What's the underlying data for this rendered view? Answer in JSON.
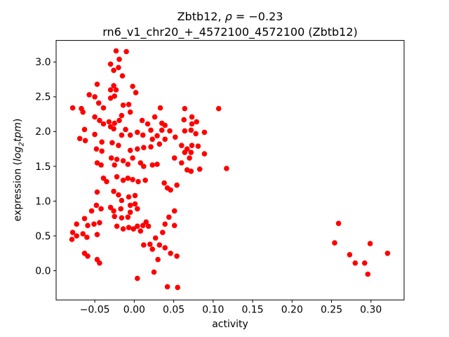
{
  "header": {
    "title_gene": "Zbtb12, ",
    "title_rho_symbol": "ρ",
    "title_rho_value": " = −0.23",
    "subtitle": "rn6_v1_chr20_+_4572100_4572100 (Zbtb12)"
  },
  "axes": {
    "xlabel": "activity",
    "ylabel_prefix": "expression (",
    "ylabel_log": "log",
    "ylabel_sub": "2",
    "ylabel_tpm": "tpm",
    "ylabel_suffix": ")"
  },
  "chart_data": {
    "type": "scatter",
    "title": "Zbtb12, ρ = −0.23",
    "subtitle": "rn6_v1_chr20_+_4572100_4572100 (Zbtb12)",
    "gene": "Zbtb12",
    "rho": -0.23,
    "xlabel": "activity",
    "ylabel": "expression (log2tpm)",
    "marker_color": "#ff0000",
    "background": "#ffffff",
    "grid": false,
    "legend": false,
    "xlim": [
      -0.099,
      0.342
    ],
    "ylim": [
      -0.42,
      3.31
    ],
    "xticks": [
      {
        "v": -0.05,
        "label": "−0.05"
      },
      {
        "v": 0.0,
        "label": "0.00"
      },
      {
        "v": 0.05,
        "label": "0.05"
      },
      {
        "v": 0.1,
        "label": "0.10"
      },
      {
        "v": 0.15,
        "label": "0.15"
      },
      {
        "v": 0.2,
        "label": "0.20"
      },
      {
        "v": 0.25,
        "label": "0.25"
      },
      {
        "v": 0.3,
        "label": "0.30"
      }
    ],
    "yticks": [
      {
        "v": 0.0,
        "label": "0.0"
      },
      {
        "v": 0.5,
        "label": "0.5"
      },
      {
        "v": 1.0,
        "label": "1.0"
      },
      {
        "v": 1.5,
        "label": "1.5"
      },
      {
        "v": 2.0,
        "label": "2.0"
      },
      {
        "v": 2.5,
        "label": "2.5"
      },
      {
        "v": 3.0,
        "label": "3.0"
      }
    ],
    "points": [
      [
        -0.023,
        3.16
      ],
      [
        -0.01,
        3.15
      ],
      [
        -0.019,
        3.04
      ],
      [
        -0.03,
        2.97
      ],
      [
        -0.02,
        2.92
      ],
      [
        -0.026,
        2.88
      ],
      [
        -0.015,
        2.8
      ],
      [
        -0.047,
        2.68
      ],
      [
        -0.026,
        2.66
      ],
      [
        -0.03,
        2.6
      ],
      [
        -0.023,
        2.6
      ],
      [
        -0.002,
        2.65
      ],
      [
        0.002,
        2.56
      ],
      [
        -0.057,
        2.53
      ],
      [
        -0.05,
        2.5
      ],
      [
        -0.025,
        2.51
      ],
      [
        -0.03,
        2.48
      ],
      [
        -0.045,
        2.41
      ],
      [
        -0.078,
        2.34
      ],
      [
        -0.067,
        2.33
      ],
      [
        -0.065,
        2.28
      ],
      [
        -0.039,
        2.34
      ],
      [
        -0.014,
        2.38
      ],
      [
        -0.007,
        2.39
      ],
      [
        -0.005,
        2.28
      ],
      [
        -0.016,
        2.23
      ],
      [
        -0.05,
        2.21
      ],
      [
        -0.044,
        2.16
      ],
      [
        -0.039,
        2.11
      ],
      [
        -0.032,
        2.14
      ],
      [
        -0.025,
        2.12
      ],
      [
        -0.019,
        2.16
      ],
      [
        0.01,
        2.16
      ],
      [
        0.017,
        2.11
      ],
      [
        -0.03,
        2.07
      ],
      [
        0.033,
        2.34
      ],
      [
        0.026,
        2.21
      ],
      [
        0.035,
        2.12
      ],
      [
        0.039,
        2.09
      ],
      [
        0.064,
        2.33
      ],
      [
        0.063,
        2.17
      ],
      [
        0.073,
        2.21
      ],
      [
        0.079,
        2.14
      ],
      [
        0.073,
        2.11
      ],
      [
        0.107,
        2.33
      ],
      [
        -0.063,
        2.03
      ],
      [
        -0.05,
        1.96
      ],
      [
        -0.069,
        1.9
      ],
      [
        -0.062,
        1.87
      ],
      [
        -0.026,
        2.04
      ],
      [
        -0.011,
        2.03
      ],
      [
        -0.016,
        1.95
      ],
      [
        -0.005,
        1.95
      ],
      [
        0.004,
        1.99
      ],
      [
        0.011,
        1.95
      ],
      [
        0.021,
        2.02
      ],
      [
        0.023,
        1.89
      ],
      [
        -0.041,
        1.85
      ],
      [
        -0.028,
        1.84
      ],
      [
        -0.02,
        1.8
      ],
      [
        -0.048,
        1.75
      ],
      [
        -0.041,
        1.72
      ],
      [
        -0.005,
        1.73
      ],
      [
        0.004,
        1.75
      ],
      [
        0.012,
        1.77
      ],
      [
        0.021,
        1.78
      ],
      [
        -0.047,
        1.55
      ],
      [
        -0.042,
        1.52
      ],
      [
        -0.029,
        1.62
      ],
      [
        -0.022,
        1.6
      ],
      [
        -0.025,
        1.52
      ],
      [
        -0.014,
        1.58
      ],
      [
        -0.008,
        1.53
      ],
      [
        -0.002,
        1.62
      ],
      [
        0.008,
        1.55
      ],
      [
        0.012,
        1.5
      ],
      [
        0.023,
        1.52
      ],
      [
        -0.039,
        1.33
      ],
      [
        -0.035,
        1.28
      ],
      [
        -0.022,
        1.35
      ],
      [
        -0.014,
        1.3
      ],
      [
        -0.008,
        1.33
      ],
      [
        -0.002,
        1.31
      ],
      [
        0.005,
        1.28
      ],
      [
        0.014,
        1.3
      ],
      [
        -0.047,
        1.13
      ],
      [
        -0.026,
        1.14
      ],
      [
        -0.02,
        1.09
      ],
      [
        -0.007,
        1.06
      ],
      [
        0.001,
        1.08
      ],
      [
        -0.016,
        1.01
      ],
      [
        -0.005,
        0.94
      ],
      [
        0.001,
        0.96
      ],
      [
        -0.048,
        0.94
      ],
      [
        -0.042,
        0.89
      ],
      [
        -0.054,
        0.86
      ],
      [
        -0.03,
        0.91
      ],
      [
        -0.026,
        0.86
      ],
      [
        -0.017,
        0.89
      ],
      [
        -0.005,
        0.84
      ],
      [
        0.004,
        0.89
      ],
      [
        0.035,
        2.02
      ],
      [
        0.045,
        2.01
      ],
      [
        0.029,
        1.94
      ],
      [
        0.039,
        1.89
      ],
      [
        0.052,
        1.92
      ],
      [
        0.032,
        1.82
      ],
      [
        0.064,
        2.01
      ],
      [
        0.072,
        2.02
      ],
      [
        0.078,
        1.97
      ],
      [
        0.089,
        1.99
      ],
      [
        0.06,
        1.8
      ],
      [
        0.067,
        1.75
      ],
      [
        0.073,
        1.8
      ],
      [
        0.081,
        1.79
      ],
      [
        0.072,
        1.7
      ],
      [
        0.064,
        1.7
      ],
      [
        0.089,
        1.68
      ],
      [
        0.051,
        1.62
      ],
      [
        0.06,
        1.55
      ],
      [
        0.07,
        1.62
      ],
      [
        0.029,
        1.53
      ],
      [
        0.067,
        1.45
      ],
      [
        0.072,
        1.43
      ],
      [
        0.083,
        1.46
      ],
      [
        0.117,
        1.47
      ],
      [
        0.038,
        1.26
      ],
      [
        0.042,
        1.19
      ],
      [
        0.046,
        1.16
      ],
      [
        0.054,
        1.23
      ],
      [
        0.051,
        0.86
      ],
      [
        -0.063,
        0.75
      ],
      [
        -0.073,
        0.67
      ],
      [
        -0.059,
        0.65
      ],
      [
        -0.051,
        0.67
      ],
      [
        -0.044,
        0.69
      ],
      [
        -0.078,
        0.55
      ],
      [
        -0.073,
        0.5
      ],
      [
        -0.065,
        0.53
      ],
      [
        -0.06,
        0.48
      ],
      [
        -0.079,
        0.45
      ],
      [
        -0.047,
        0.52
      ],
      [
        -0.063,
        0.25
      ],
      [
        -0.059,
        0.21
      ],
      [
        -0.047,
        0.16
      ],
      [
        -0.044,
        0.11
      ],
      [
        -0.025,
        0.78
      ],
      [
        -0.016,
        0.76
      ],
      [
        -0.008,
        0.77
      ],
      [
        -0.022,
        0.64
      ],
      [
        -0.014,
        0.6
      ],
      [
        -0.007,
        0.62
      ],
      [
        -0.001,
        0.6
      ],
      [
        0.004,
        0.64
      ],
      [
        0.011,
        0.65
      ],
      [
        0.015,
        0.7
      ],
      [
        0.018,
        0.64
      ],
      [
        0.008,
        0.57
      ],
      [
        0.012,
        0.37
      ],
      [
        0.02,
        0.38
      ],
      [
        0.023,
        0.31
      ],
      [
        0.004,
        -0.11
      ],
      [
        0.025,
        -0.02
      ],
      [
        0.044,
        0.77
      ],
      [
        0.039,
        0.67
      ],
      [
        0.051,
        0.65
      ],
      [
        0.036,
        0.55
      ],
      [
        0.027,
        0.47
      ],
      [
        0.032,
        0.37
      ],
      [
        0.039,
        0.33
      ],
      [
        0.046,
        0.25
      ],
      [
        0.054,
        0.21
      ],
      [
        0.03,
        0.16
      ],
      [
        0.042,
        -0.23
      ],
      [
        0.055,
        -0.24
      ],
      [
        0.259,
        0.68
      ],
      [
        0.254,
        0.4
      ],
      [
        0.273,
        0.23
      ],
      [
        0.28,
        0.11
      ],
      [
        0.292,
        0.11
      ],
      [
        0.299,
        0.39
      ],
      [
        0.296,
        -0.05
      ],
      [
        0.321,
        0.25
      ]
    ]
  }
}
